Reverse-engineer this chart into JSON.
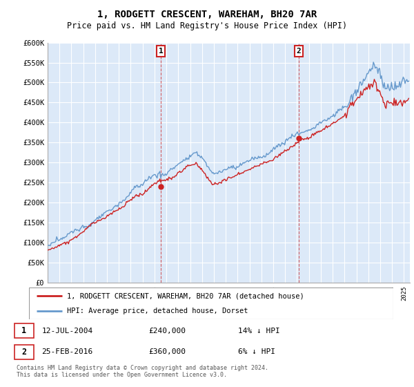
{
  "title": "1, RODGETT CRESCENT, WAREHAM, BH20 7AR",
  "subtitle": "Price paid vs. HM Land Registry's House Price Index (HPI)",
  "ylim": [
    0,
    600000
  ],
  "yticks": [
    0,
    50000,
    100000,
    150000,
    200000,
    250000,
    300000,
    350000,
    400000,
    450000,
    500000,
    550000,
    600000
  ],
  "ytick_labels": [
    "£0",
    "£50K",
    "£100K",
    "£150K",
    "£200K",
    "£250K",
    "£300K",
    "£350K",
    "£400K",
    "£450K",
    "£500K",
    "£550K",
    "£600K"
  ],
  "bg_color": "#dce9f8",
  "grid_color": "#ffffff",
  "hpi_color": "#6699cc",
  "price_color": "#cc2222",
  "sale1_date": 2004.54,
  "sale1_price": 240000,
  "sale2_date": 2016.15,
  "sale2_price": 360000,
  "legend_label1": "1, RODGETT CRESCENT, WAREHAM, BH20 7AR (detached house)",
  "legend_label2": "HPI: Average price, detached house, Dorset",
  "footnote": "Contains HM Land Registry data © Crown copyright and database right 2024.\nThis data is licensed under the Open Government Licence v3.0.",
  "xstart": 1995.0,
  "xend": 2025.5
}
